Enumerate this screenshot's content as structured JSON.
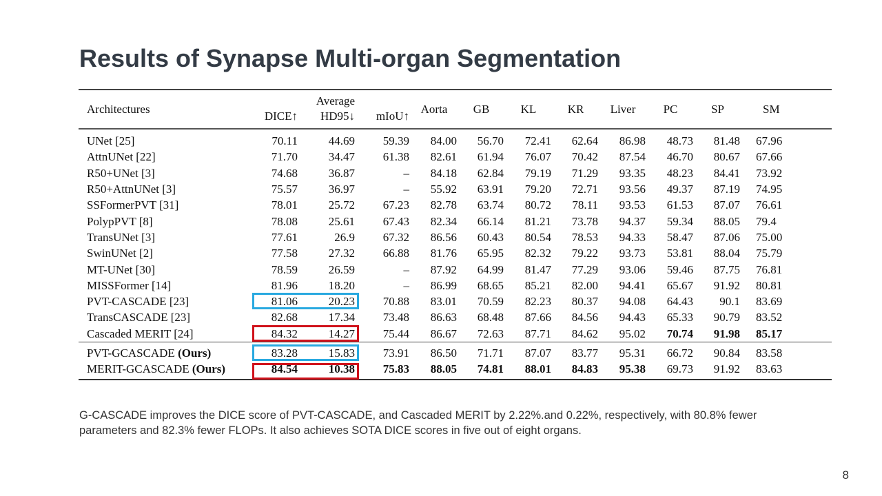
{
  "title": "Results of Synapse Multi-organ Segmentation",
  "table": {
    "headers": {
      "architectures": "Architectures",
      "dice": "DICE↑",
      "average": "Average",
      "hd95": "HD95↓",
      "miou": "mIoU↑",
      "organs": [
        "Aorta",
        "GB",
        "KL",
        "KR",
        "Liver",
        "PC",
        "SP",
        "SM"
      ]
    },
    "rows": [
      {
        "name": "UNet [25]",
        "values": [
          "70.11",
          "44.69",
          "59.39",
          "84.00",
          "56.70",
          "72.41",
          "62.64",
          "86.98",
          "48.73",
          "81.48",
          "67.96"
        ]
      },
      {
        "name": "AttnUNet [22]",
        "values": [
          "71.70",
          "34.47",
          "61.38",
          "82.61",
          "61.94",
          "76.07",
          "70.42",
          "87.54",
          "46.70",
          "80.67",
          "67.66"
        ]
      },
      {
        "name": "R50+UNet [3]",
        "values": [
          "74.68",
          "36.87",
          "–",
          "84.18",
          "62.84",
          "79.19",
          "71.29",
          "93.35",
          "48.23",
          "84.41",
          "73.92"
        ]
      },
      {
        "name": "R50+AttnUNet [3]",
        "values": [
          "75.57",
          "36.97",
          "–",
          "55.92",
          "63.91",
          "79.20",
          "72.71",
          "93.56",
          "49.37",
          "87.19",
          "74.95"
        ]
      },
      {
        "name": "SSFormerPVT [31]",
        "values": [
          "78.01",
          "25.72",
          "67.23",
          "82.78",
          "63.74",
          "80.72",
          "78.11",
          "93.53",
          "61.53",
          "87.07",
          "76.61"
        ]
      },
      {
        "name": "PolypPVT [8]",
        "values": [
          "78.08",
          "25.61",
          "67.43",
          "82.34",
          "66.14",
          "81.21",
          "73.78",
          "94.37",
          "59.34",
          "88.05",
          "79.4"
        ]
      },
      {
        "name": "TransUNet [3]",
        "values": [
          "77.61",
          "26.9",
          "67.32",
          "86.56",
          "60.43",
          "80.54",
          "78.53",
          "94.33",
          "58.47",
          "87.06",
          "75.00"
        ]
      },
      {
        "name": "SwinUNet [2]",
        "values": [
          "77.58",
          "27.32",
          "66.88",
          "81.76",
          "65.95",
          "82.32",
          "79.22",
          "93.73",
          "53.81",
          "88.04",
          "75.79"
        ]
      },
      {
        "name": "MT-UNet [30]",
        "values": [
          "78.59",
          "26.59",
          "–",
          "87.92",
          "64.99",
          "81.47",
          "77.29",
          "93.06",
          "59.46",
          "87.75",
          "76.81"
        ]
      },
      {
        "name": "MISSFormer [14]",
        "values": [
          "81.96",
          "18.20",
          "–",
          "86.99",
          "68.65",
          "85.21",
          "82.00",
          "94.41",
          "65.67",
          "91.92",
          "80.81"
        ]
      },
      {
        "name": "PVT-CASCADE [23]",
        "values": [
          "81.06",
          "20.23",
          "70.88",
          "83.01",
          "70.59",
          "82.23",
          "80.37",
          "94.08",
          "64.43",
          "90.1",
          "83.69"
        ],
        "box": "#29a9e0"
      },
      {
        "name": "TransCASCADE [23]",
        "values": [
          "82.68",
          "17.34",
          "73.48",
          "86.63",
          "68.48",
          "87.66",
          "84.56",
          "94.43",
          "65.33",
          "90.79",
          "83.52"
        ]
      },
      {
        "name": "Cascaded MERIT [24]",
        "values": [
          "84.32",
          "14.27",
          "75.44",
          "86.67",
          "72.63",
          "87.71",
          "84.62",
          "95.02",
          "70.74",
          "91.98",
          "85.17"
        ],
        "bold": [
          8,
          9,
          10
        ],
        "box": "#d0121b"
      },
      {
        "name": "PVT-GCASCADE (Ours)",
        "values": [
          "83.28",
          "15.83",
          "73.91",
          "86.50",
          "71.71",
          "87.07",
          "83.77",
          "95.31",
          "66.72",
          "90.84",
          "83.58"
        ],
        "ours": true,
        "box": "#29a9e0"
      },
      {
        "name": "MERIT-GCASCADE (Ours)",
        "values": [
          "84.54",
          "10.38",
          "75.83",
          "88.05",
          "74.81",
          "88.01",
          "84.83",
          "95.38",
          "69.73",
          "91.92",
          "83.63"
        ],
        "ours": true,
        "bold": [
          0,
          1,
          2,
          3,
          4,
          5,
          6,
          7
        ],
        "box": "#d0121b"
      }
    ]
  },
  "caption": "G-CASCADE improves the DICE score of PVT-CASCADE, and Cascaded MERIT by 2.22%.and 0.22%, respectively, with 80.8% fewer parameters and 82.3% fewer FLOPs. It also achieves SOTA DICE scores in five out of eight organs.",
  "page_number": "8"
}
